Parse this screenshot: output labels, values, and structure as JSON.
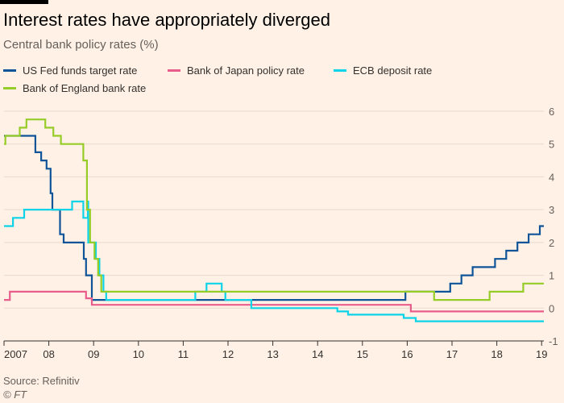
{
  "title": "Interest rates have appropriately diverged",
  "subtitle": "Central bank policy rates (%)",
  "source": "Source: Refinitiv",
  "copyright": "© FT",
  "chart_data": {
    "type": "line",
    "title": "Interest rates have appropriately diverged",
    "subtitle": "Central bank policy rates (%)",
    "xlim": [
      2007,
      2019.05
    ],
    "ylim": [
      -1,
      6
    ],
    "x_ticks": [
      {
        "value": 2007,
        "label": "2007"
      },
      {
        "value": 2008,
        "label": "08"
      },
      {
        "value": 2009,
        "label": "09"
      },
      {
        "value": 2010,
        "label": "10"
      },
      {
        "value": 2011,
        "label": "11"
      },
      {
        "value": 2012,
        "label": "12"
      },
      {
        "value": 2013,
        "label": "13"
      },
      {
        "value": 2014,
        "label": "14"
      },
      {
        "value": 2015,
        "label": "15"
      },
      {
        "value": 2016,
        "label": "16"
      },
      {
        "value": 2017,
        "label": "17"
      },
      {
        "value": 2018,
        "label": "18"
      },
      {
        "value": 2019,
        "label": "19"
      }
    ],
    "y_ticks": [
      6,
      5,
      4,
      3,
      2,
      1,
      0,
      -1
    ],
    "grid": "horizontal",
    "legend_position": "top",
    "series": [
      {
        "name": "US Fed funds target rate",
        "color": "#0f5499",
        "points": [
          [
            2007.0,
            5.25
          ],
          [
            2007.7,
            5.25
          ],
          [
            2007.7,
            4.75
          ],
          [
            2007.83,
            4.75
          ],
          [
            2007.83,
            4.5
          ],
          [
            2007.95,
            4.5
          ],
          [
            2007.95,
            4.25
          ],
          [
            2008.04,
            4.25
          ],
          [
            2008.04,
            3.5
          ],
          [
            2008.08,
            3.5
          ],
          [
            2008.08,
            3.0
          ],
          [
            2008.25,
            3.0
          ],
          [
            2008.25,
            2.25
          ],
          [
            2008.33,
            2.25
          ],
          [
            2008.33,
            2.0
          ],
          [
            2008.78,
            2.0
          ],
          [
            2008.78,
            1.5
          ],
          [
            2008.83,
            1.5
          ],
          [
            2008.83,
            1.0
          ],
          [
            2008.96,
            1.0
          ],
          [
            2008.96,
            0.25
          ],
          [
            2015.96,
            0.25
          ],
          [
            2015.96,
            0.5
          ],
          [
            2016.96,
            0.5
          ],
          [
            2016.96,
            0.75
          ],
          [
            2017.21,
            0.75
          ],
          [
            2017.21,
            1.0
          ],
          [
            2017.46,
            1.0
          ],
          [
            2017.46,
            1.25
          ],
          [
            2017.96,
            1.25
          ],
          [
            2017.96,
            1.5
          ],
          [
            2018.21,
            1.5
          ],
          [
            2018.21,
            1.75
          ],
          [
            2018.46,
            1.75
          ],
          [
            2018.46,
            2.0
          ],
          [
            2018.71,
            2.0
          ],
          [
            2018.71,
            2.25
          ],
          [
            2018.96,
            2.25
          ],
          [
            2018.96,
            2.5
          ],
          [
            2019.05,
            2.5
          ]
        ]
      },
      {
        "name": "Bank of Japan policy rate",
        "color": "#e95d8c",
        "points": [
          [
            2007.0,
            0.25
          ],
          [
            2007.13,
            0.25
          ],
          [
            2007.13,
            0.5
          ],
          [
            2008.83,
            0.5
          ],
          [
            2008.83,
            0.3
          ],
          [
            2008.96,
            0.3
          ],
          [
            2008.96,
            0.1
          ],
          [
            2016.08,
            0.1
          ],
          [
            2016.08,
            -0.1
          ],
          [
            2019.05,
            -0.1
          ]
        ]
      },
      {
        "name": "ECB deposit rate",
        "color": "#0dd3e8",
        "points": [
          [
            2007.0,
            2.5
          ],
          [
            2007.2,
            2.5
          ],
          [
            2007.2,
            2.75
          ],
          [
            2007.45,
            2.75
          ],
          [
            2007.45,
            3.0
          ],
          [
            2008.52,
            3.0
          ],
          [
            2008.52,
            3.25
          ],
          [
            2008.77,
            3.25
          ],
          [
            2008.77,
            2.75
          ],
          [
            2008.87,
            2.75
          ],
          [
            2008.87,
            3.25
          ],
          [
            2008.88,
            3.25
          ],
          [
            2008.88,
            2.0
          ],
          [
            2009.05,
            2.0
          ],
          [
            2009.05,
            1.5
          ],
          [
            2009.13,
            1.5
          ],
          [
            2009.13,
            1.0
          ],
          [
            2009.22,
            1.0
          ],
          [
            2009.22,
            0.5
          ],
          [
            2009.28,
            0.5
          ],
          [
            2009.28,
            0.25
          ],
          [
            2011.27,
            0.25
          ],
          [
            2011.27,
            0.5
          ],
          [
            2011.52,
            0.5
          ],
          [
            2011.52,
            0.75
          ],
          [
            2011.86,
            0.75
          ],
          [
            2011.86,
            0.5
          ],
          [
            2011.94,
            0.5
          ],
          [
            2011.94,
            0.25
          ],
          [
            2012.52,
            0.25
          ],
          [
            2012.52,
            0.0
          ],
          [
            2014.44,
            0.0
          ],
          [
            2014.44,
            -0.1
          ],
          [
            2014.68,
            -0.1
          ],
          [
            2014.68,
            -0.2
          ],
          [
            2015.92,
            -0.2
          ],
          [
            2015.92,
            -0.3
          ],
          [
            2016.19,
            -0.3
          ],
          [
            2016.19,
            -0.4
          ],
          [
            2019.05,
            -0.4
          ]
        ]
      },
      {
        "name": "Bank of England bank rate",
        "color": "#96cc28",
        "points": [
          [
            2007.0,
            5.0
          ],
          [
            2007.03,
            5.0
          ],
          [
            2007.03,
            5.25
          ],
          [
            2007.35,
            5.25
          ],
          [
            2007.35,
            5.5
          ],
          [
            2007.5,
            5.5
          ],
          [
            2007.5,
            5.75
          ],
          [
            2007.92,
            5.75
          ],
          [
            2007.92,
            5.5
          ],
          [
            2008.1,
            5.5
          ],
          [
            2008.1,
            5.25
          ],
          [
            2008.27,
            5.25
          ],
          [
            2008.27,
            5.0
          ],
          [
            2008.77,
            5.0
          ],
          [
            2008.77,
            4.5
          ],
          [
            2008.85,
            4.5
          ],
          [
            2008.85,
            3.0
          ],
          [
            2008.92,
            3.0
          ],
          [
            2008.92,
            2.0
          ],
          [
            2009.02,
            2.0
          ],
          [
            2009.02,
            1.5
          ],
          [
            2009.1,
            1.5
          ],
          [
            2009.1,
            1.0
          ],
          [
            2009.17,
            1.0
          ],
          [
            2009.17,
            0.5
          ],
          [
            2016.6,
            0.5
          ],
          [
            2016.6,
            0.25
          ],
          [
            2017.84,
            0.25
          ],
          [
            2017.84,
            0.5
          ],
          [
            2018.59,
            0.5
          ],
          [
            2018.59,
            0.75
          ],
          [
            2019.05,
            0.75
          ]
        ]
      }
    ]
  }
}
